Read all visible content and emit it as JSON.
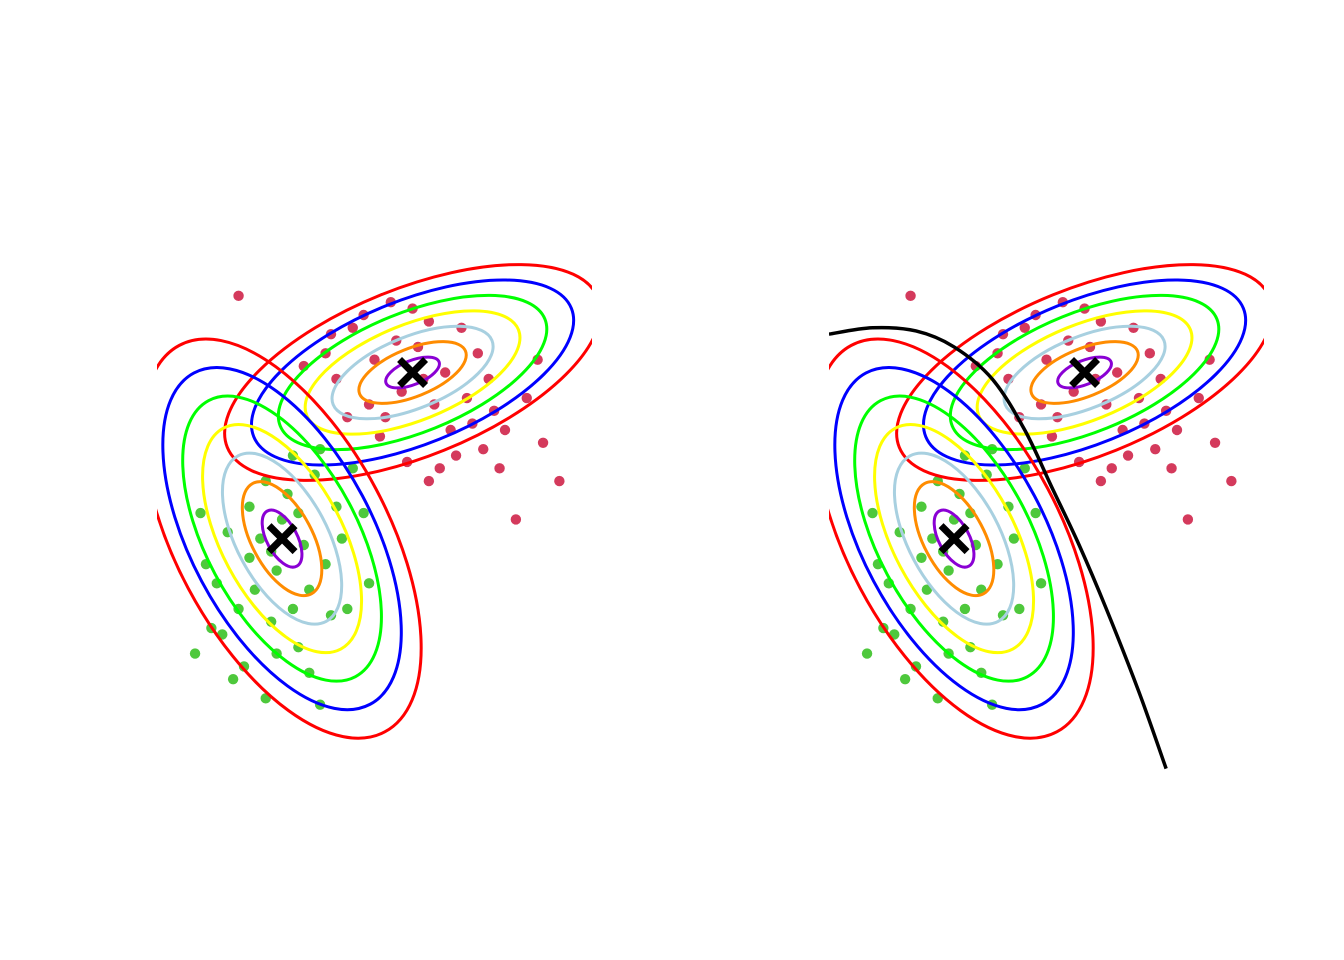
{
  "chart_data": [
    {
      "type": "scatter",
      "title": "",
      "xlabel": "",
      "ylabel": "",
      "axes_visible": false,
      "grid": false,
      "xlim": [
        -3.5,
        4.5
      ],
      "ylim": [
        -4.5,
        4.5
      ],
      "contour_colors": [
        "#8a00d4",
        "#ff8c00",
        "#a8d0e0",
        "#ffff00",
        "#00ff00",
        "#0000ff",
        "#ff0000"
      ],
      "contour_levels_sigma": [
        0.5,
        1,
        1.5,
        2,
        2.5,
        3,
        3.5
      ],
      "components": [
        {
          "mean": [
            1.2,
            1.8
          ],
          "axes": [
            2.1,
            0.75
          ],
          "angle_deg": -22,
          "point_color": "#d43a5c",
          "marker": "x",
          "points": [
            [
              -2.0,
              3.0
            ],
            [
              1.5,
              2.6
            ],
            [
              0.3,
              2.7
            ],
            [
              -0.3,
              2.4
            ],
            [
              0.8,
              2.9
            ],
            [
              2.4,
              2.1
            ],
            [
              3.6,
              0.7
            ],
            [
              2.7,
              1.2
            ],
            [
              2.0,
              0.5
            ],
            [
              1.0,
              1.5
            ],
            [
              0.5,
              2.0
            ],
            [
              1.8,
              1.8
            ],
            [
              1.3,
              2.2
            ],
            [
              -0.2,
              1.7
            ],
            [
              2.9,
              0.9
            ],
            [
              3.1,
              -0.5
            ],
            [
              1.6,
              1.3
            ],
            [
              0.7,
              1.1
            ],
            [
              2.2,
              1.4
            ],
            [
              1.1,
              0.4
            ],
            [
              0.1,
              2.5
            ],
            [
              -0.8,
              1.9
            ],
            [
              3.5,
              2.0
            ],
            [
              2.5,
              0.6
            ],
            [
              1.4,
              1.7
            ],
            [
              0.9,
              2.3
            ],
            [
              2.6,
              1.7
            ],
            [
              1.9,
              0.9
            ],
            [
              3.3,
              1.4
            ],
            [
              0.4,
              1.3
            ],
            [
              2.1,
              2.5
            ],
            [
              1.7,
              0.3
            ],
            [
              -0.4,
              2.1
            ],
            [
              2.8,
              0.3
            ],
            [
              1.2,
              2.8
            ],
            [
              0.6,
              0.8
            ],
            [
              3.9,
              0.1
            ],
            [
              2.3,
              1.0
            ],
            [
              1.5,
              0.1
            ],
            [
              0.0,
              1.1
            ]
          ]
        },
        {
          "mean": [
            -1.2,
            -0.8
          ],
          "axes": [
            2.3,
            0.95
          ],
          "angle_deg": 62,
          "point_color": "#4ec83c",
          "marker": "x",
          "points": [
            [
              -2.3,
              -2.3
            ],
            [
              -1.5,
              -3.3
            ],
            [
              -0.5,
              -3.4
            ],
            [
              -2.6,
              -1.2
            ],
            [
              -0.2,
              -0.3
            ],
            [
              0.3,
              -0.4
            ],
            [
              -1.0,
              0.5
            ],
            [
              -0.7,
              -1.6
            ],
            [
              -1.8,
              -0.3
            ],
            [
              -1.3,
              -1.3
            ],
            [
              -2.0,
              -1.9
            ],
            [
              -0.9,
              -2.5
            ],
            [
              -1.6,
              -0.8
            ],
            [
              -0.4,
              -1.2
            ],
            [
              -1.1,
              -0.1
            ],
            [
              -2.8,
              -2.6
            ],
            [
              0.4,
              -1.5
            ],
            [
              -1.4,
              -2.1
            ],
            [
              -0.6,
              0.2
            ],
            [
              -2.2,
              -0.7
            ],
            [
              -1.9,
              -2.8
            ],
            [
              -0.8,
              -0.9
            ],
            [
              -1.7,
              -1.6
            ],
            [
              0.1,
              0.3
            ],
            [
              -1.2,
              -0.5
            ],
            [
              -2.4,
              -1.5
            ],
            [
              -0.3,
              -2.0
            ],
            [
              -1.0,
              -1.9
            ],
            [
              -1.5,
              0.1
            ],
            [
              -0.1,
              -0.8
            ],
            [
              -2.7,
              -0.4
            ],
            [
              -1.3,
              -2.6
            ],
            [
              -0.5,
              0.6
            ],
            [
              -1.8,
              -1.1
            ],
            [
              0.0,
              -1.9
            ],
            [
              -2.1,
              -3.0
            ],
            [
              -0.9,
              -0.4
            ],
            [
              -1.4,
              -1.0
            ],
            [
              -2.5,
              -2.2
            ],
            [
              -0.7,
              -2.9
            ]
          ]
        }
      ]
    },
    {
      "type": "scatter",
      "title": "",
      "xlabel": "",
      "ylabel": "",
      "axes_visible": false,
      "grid": false,
      "xlim": [
        -3.5,
        4.5
      ],
      "ylim": [
        -4.5,
        4.5
      ],
      "same_mixture_as_left": true,
      "decision_boundary": {
        "color": "#000000",
        "points": [
          [
            -3.5,
            2.4
          ],
          [
            -2.7,
            2.5
          ],
          [
            -1.9,
            2.45
          ],
          [
            -1.2,
            2.2
          ],
          [
            -0.5,
            1.7
          ],
          [
            0.1,
            0.9
          ],
          [
            0.6,
            0.0
          ],
          [
            1.1,
            -0.9
          ],
          [
            1.6,
            -1.9
          ],
          [
            2.2,
            -3.2
          ],
          [
            2.7,
            -4.4
          ]
        ]
      }
    }
  ]
}
